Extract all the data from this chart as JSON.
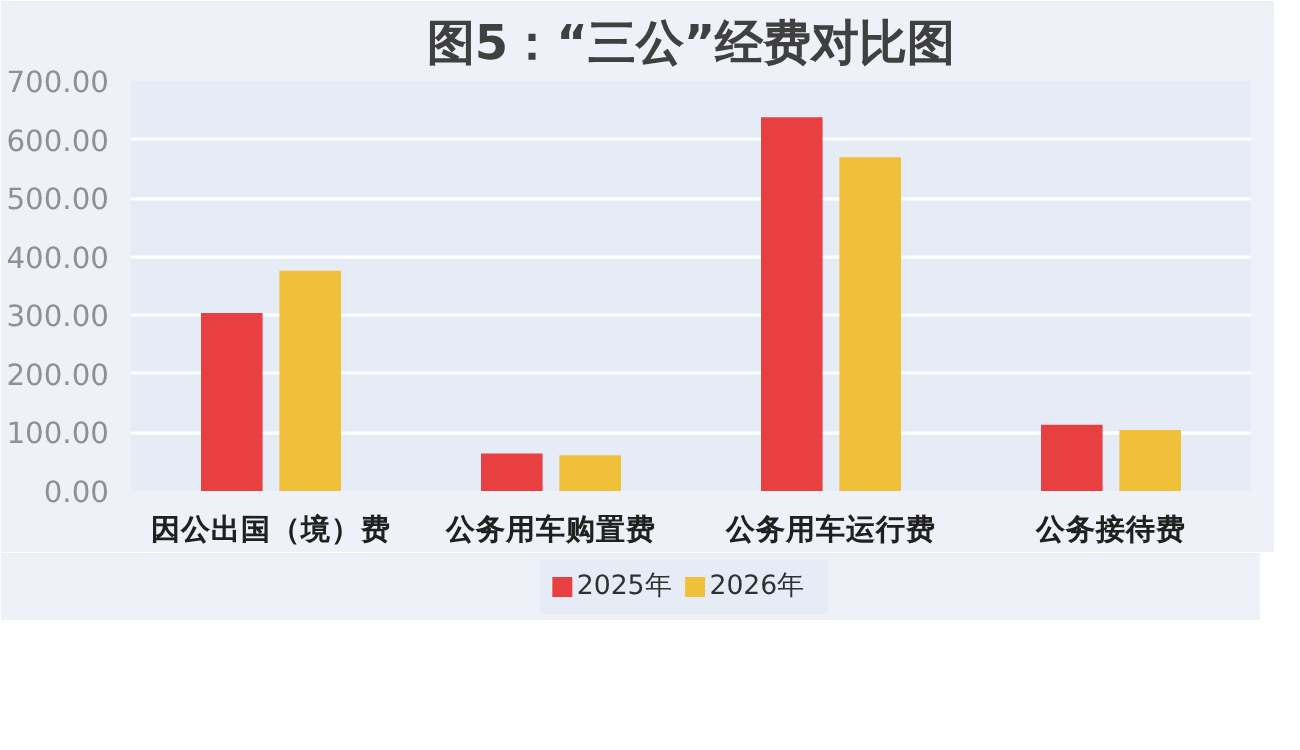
{
  "chart_data": {
    "type": "bar",
    "title": "图5：“三公”经费对比图",
    "categories": [
      "因公出国（境）费",
      "公务用车购置费",
      "公务用车运行费",
      "公务接待费"
    ],
    "series": [
      {
        "name": "2025年",
        "color": "#e84040",
        "values": [
          304,
          64,
          638,
          113
        ]
      },
      {
        "name": "2026年",
        "color": "#f0c03a",
        "values": [
          376,
          61,
          570,
          104
        ]
      }
    ],
    "ylim": [
      0,
      700
    ],
    "yticks": [
      {
        "value": 0,
        "label": "0.00"
      },
      {
        "value": 100,
        "label": "100.00"
      },
      {
        "value": 200,
        "label": "200.00"
      },
      {
        "value": 300,
        "label": "300.00"
      },
      {
        "value": 400,
        "label": "400.00"
      },
      {
        "value": 500,
        "label": "500.00"
      },
      {
        "value": 600,
        "label": "600.00"
      },
      {
        "value": 700,
        "label": "700.00"
      }
    ],
    "grid": "y",
    "legend": "bottom"
  }
}
